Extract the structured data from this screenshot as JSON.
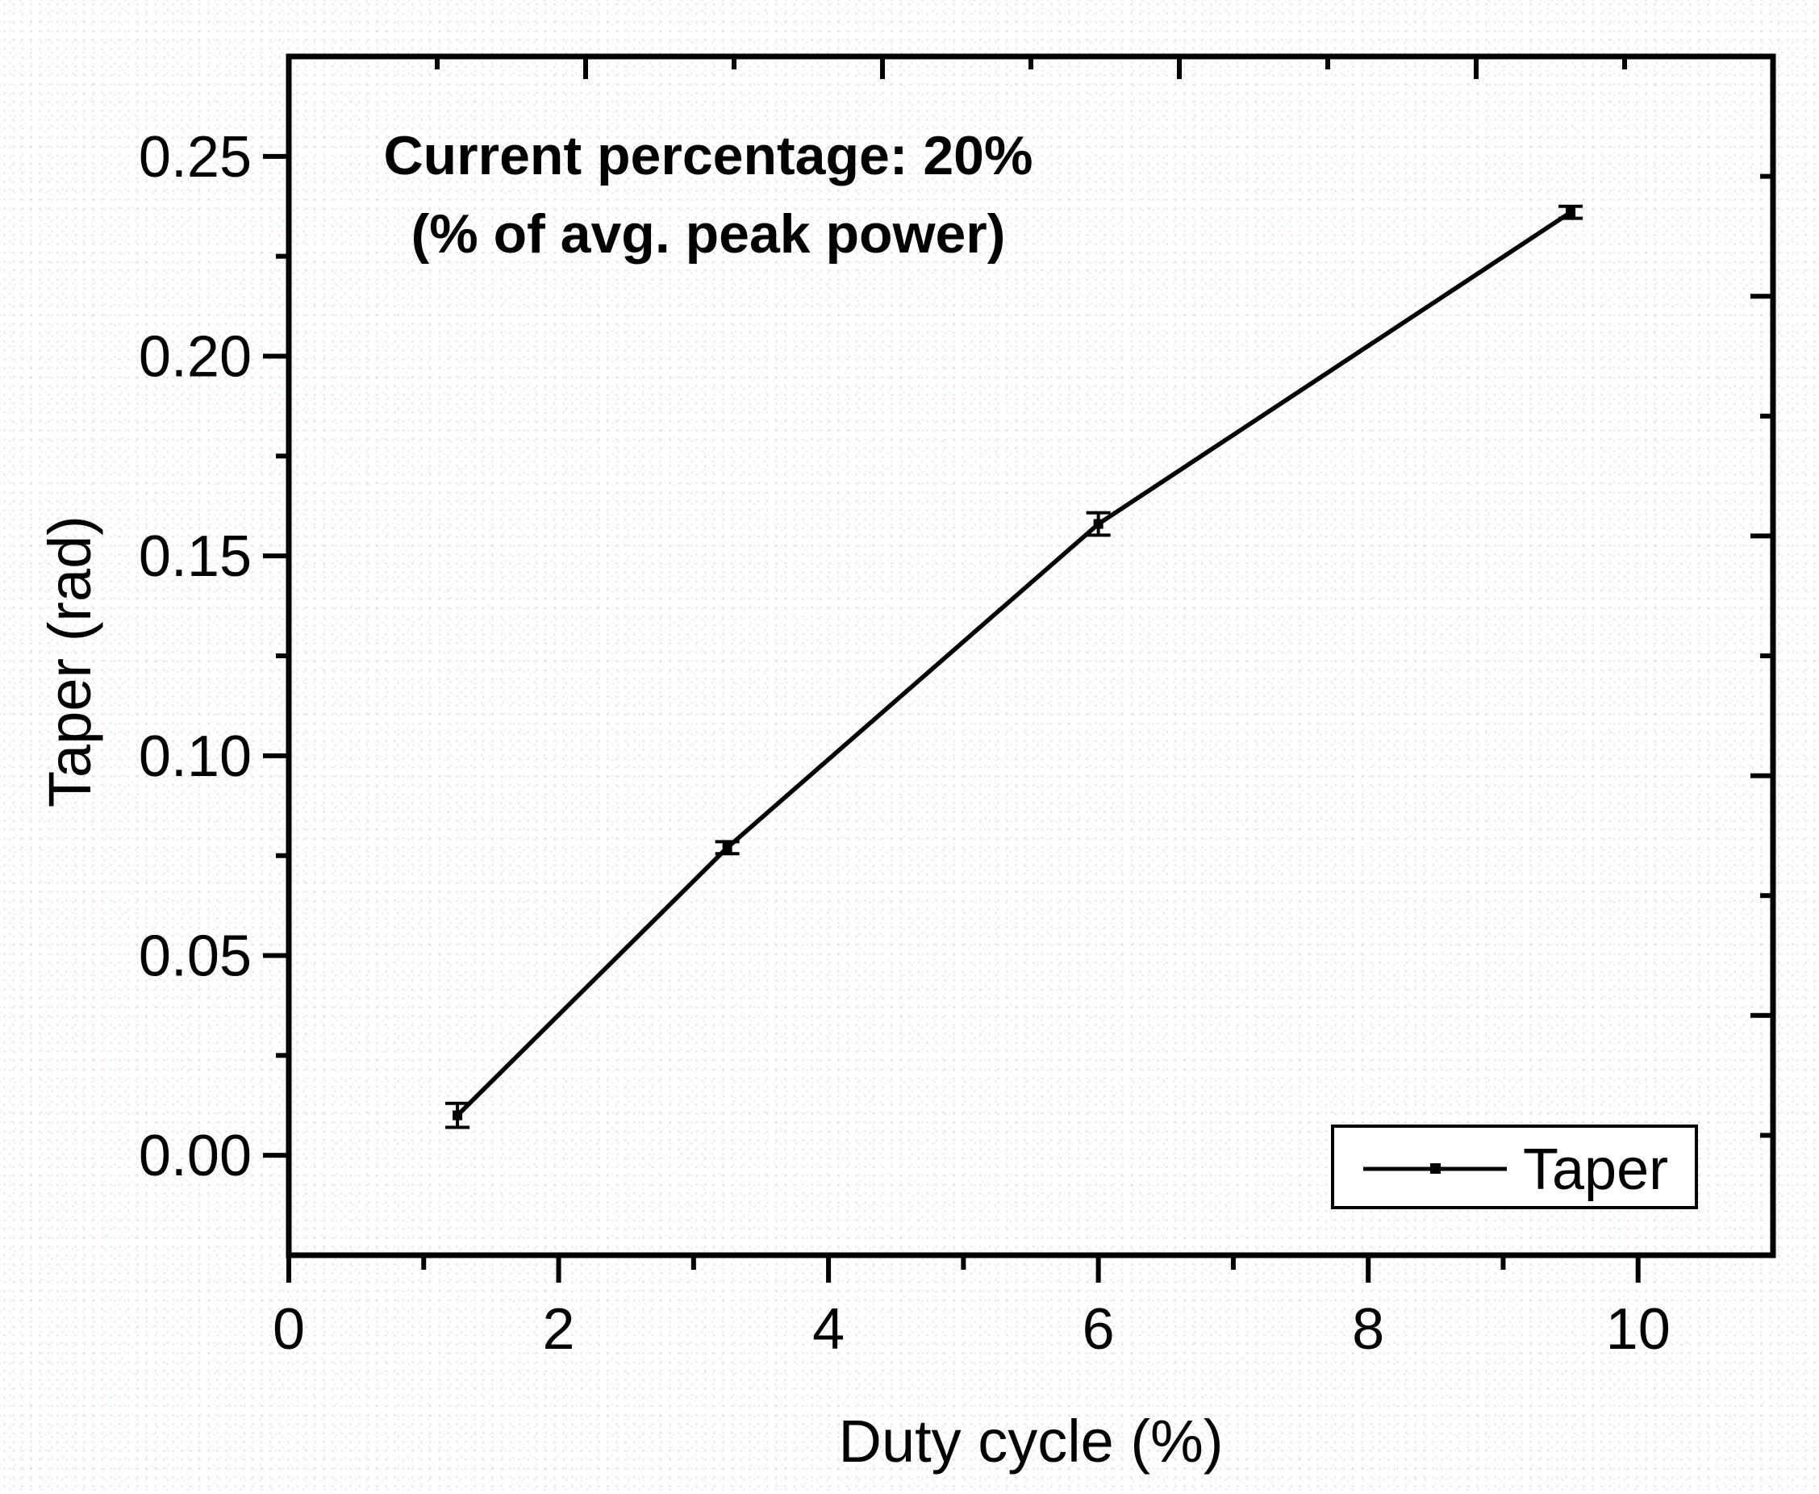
{
  "chart_data": {
    "type": "line",
    "title": "",
    "xlabel": "Duty cycle (%)",
    "ylabel": "Taper (rad)",
    "xlim": [
      0,
      11
    ],
    "ylim": [
      -0.025,
      0.275
    ],
    "grid": false,
    "x_major_ticks": [
      0,
      2,
      4,
      6,
      8,
      10
    ],
    "x_tick_labels": [
      "0",
      "2",
      "4",
      "6",
      "8",
      "10"
    ],
    "x_minor_ticks": [
      1,
      3,
      5,
      7,
      9
    ],
    "y_major_ticks": [
      0,
      0.05,
      0.1,
      0.15,
      0.2,
      0.25
    ],
    "y_tick_labels": [
      "0.00",
      "0.05",
      "0.10",
      "0.15",
      "0.20",
      "0.25"
    ],
    "y_minor_ticks": [
      0.025,
      0.075,
      0.125,
      0.175,
      0.225
    ],
    "top_axis_major_ticks": [
      0,
      2.2,
      4.4,
      6.6,
      8.8,
      11
    ],
    "top_axis_minor_ticks": [
      1.1,
      3.3,
      5.5,
      7.7,
      9.9
    ],
    "right_axis_major_ticks": [
      -0.025,
      0.035,
      0.095,
      0.155,
      0.215,
      0.275
    ],
    "right_axis_minor_ticks": [
      0.005,
      0.065,
      0.125,
      0.185,
      0.245
    ],
    "series": [
      {
        "name": "Taper",
        "color": "#000000",
        "marker": "square",
        "x": [
          1.25,
          3.25,
          6.0,
          9.5
        ],
        "y": [
          0.01,
          0.077,
          0.158,
          0.236
        ],
        "y_err": [
          0.003,
          0.0015,
          0.0028,
          0.0015
        ]
      }
    ],
    "annotation": {
      "line1": "Current percentage: 20%",
      "line2": "(% of avg. peak power)",
      "color": "#0000EE"
    },
    "legend": {
      "label": "Taper",
      "position": "bottom-right"
    }
  }
}
